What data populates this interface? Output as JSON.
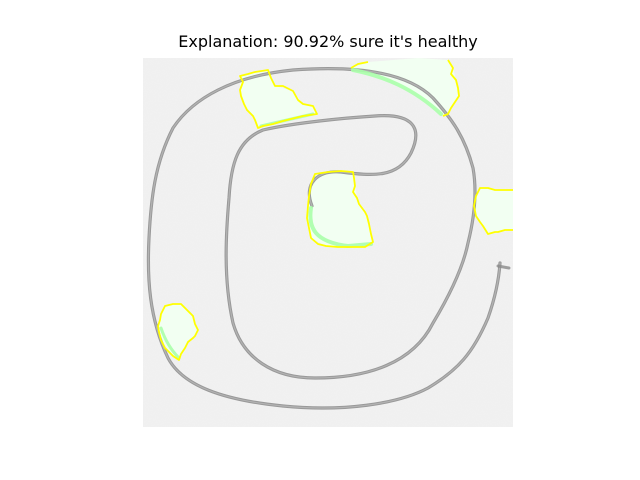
{
  "figure": {
    "title": "Explanation: 90.92% sure it's healthy",
    "background_color": "#ffffff"
  },
  "image": {
    "paper_color": "#f2f2f2",
    "stroke_color": "#8a8a8a",
    "highlight_fill": "#f1fff1",
    "highlight_outline": "#ffff00",
    "highlight_accent": "#aaffaa"
  }
}
